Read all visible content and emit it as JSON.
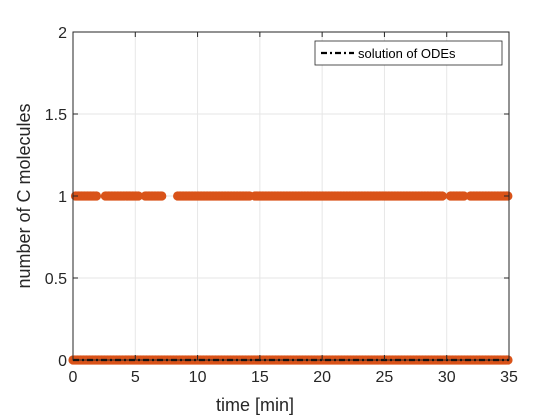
{
  "chart_data": {
    "type": "scatter",
    "xlabel": "time [min]",
    "ylabel": "number of C molecules",
    "xlim": [
      0,
      35
    ],
    "ylim": [
      0,
      2
    ],
    "xticks": [
      "0",
      "5",
      "10",
      "15",
      "20",
      "25",
      "30",
      "35"
    ],
    "yticks": [
      "0",
      "0.5",
      "1",
      "1.5",
      "2"
    ],
    "grid": true,
    "legend": {
      "placement": "top-right",
      "entries": [
        "solution of ODEs"
      ]
    },
    "series": [
      {
        "kind": "markers",
        "color": "#D95319",
        "segments_at_1": [
          [
            0.2,
            2.0
          ],
          [
            2.6,
            5.3
          ],
          [
            5.8,
            7.2
          ],
          [
            8.4,
            14.2
          ],
          [
            14.6,
            29.7
          ],
          [
            30.3,
            31.4
          ],
          [
            31.9,
            35.0
          ]
        ],
        "segments_at_0": [
          [
            0.0,
            35.0
          ]
        ]
      },
      {
        "name": "solution of ODEs",
        "kind": "line",
        "style": "dash-dot",
        "color": "#000000",
        "x": [
          0,
          35
        ],
        "y": [
          0,
          0
        ]
      }
    ]
  }
}
